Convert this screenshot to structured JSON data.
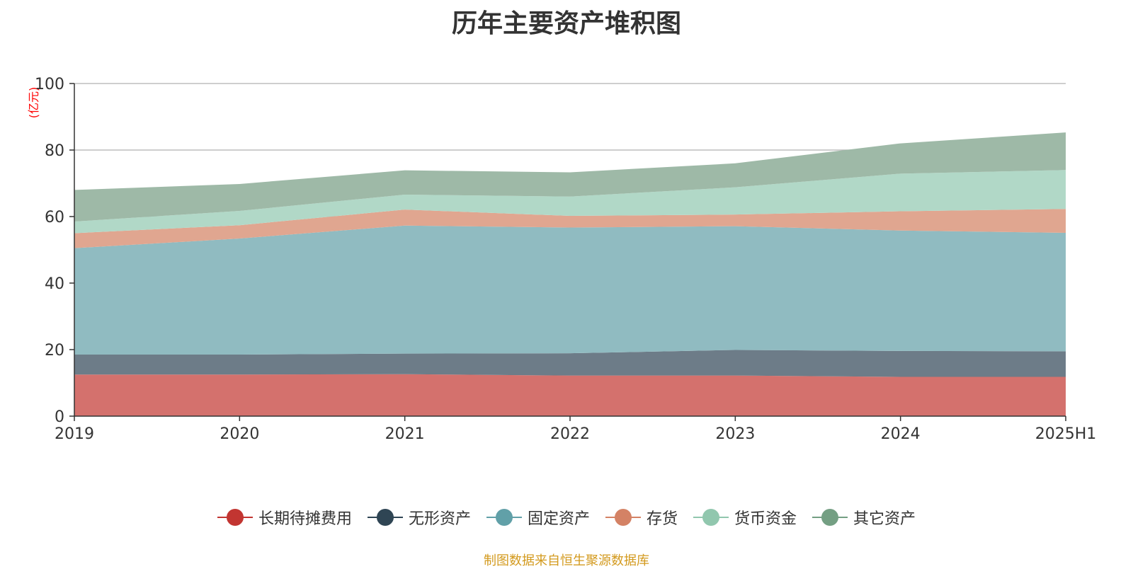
{
  "chart_data": {
    "type": "area",
    "stacked": true,
    "title": "历年主要资产堆积图",
    "unit": "(亿元)",
    "categories": [
      "2019",
      "2020",
      "2021",
      "2022",
      "2023",
      "2024",
      "2025H1"
    ],
    "ylim": [
      0,
      100
    ],
    "yticks": [
      "0",
      "20",
      "40",
      "60",
      "80",
      "100"
    ],
    "grid": true,
    "legend_position": "bottom",
    "series": [
      {
        "name": "长期待摊费用",
        "color": "#c23531",
        "fill": "#d4716d",
        "values": [
          12.5,
          12.5,
          12.6,
          12.2,
          12.2,
          11.8,
          11.8
        ]
      },
      {
        "name": "无形资产",
        "color": "#2f4554",
        "fill": "#6d7c88",
        "values": [
          6.0,
          6.0,
          6.2,
          6.7,
          7.7,
          7.8,
          7.7
        ]
      },
      {
        "name": "固定资产",
        "color": "#61a0a8",
        "fill": "#90bbc1",
        "values": [
          32.0,
          34.9,
          38.5,
          37.8,
          37.2,
          36.2,
          35.6
        ]
      },
      {
        "name": "存货",
        "color": "#d48265",
        "fill": "#e0a690",
        "values": [
          4.5,
          4.0,
          4.8,
          3.5,
          3.5,
          5.8,
          7.2
        ]
      },
      {
        "name": "货币资金",
        "color": "#91c7ae",
        "fill": "#b1d8c7",
        "values": [
          3.5,
          4.3,
          4.5,
          5.8,
          8.2,
          11.3,
          11.7
        ]
      },
      {
        "name": "其它资产",
        "color": "#749f83",
        "fill": "#9eb9a7",
        "values": [
          9.5,
          8.1,
          7.3,
          7.3,
          7.2,
          9.1,
          11.3
        ]
      }
    ]
  },
  "source_note": "制图数据来自恒生聚源数据库"
}
